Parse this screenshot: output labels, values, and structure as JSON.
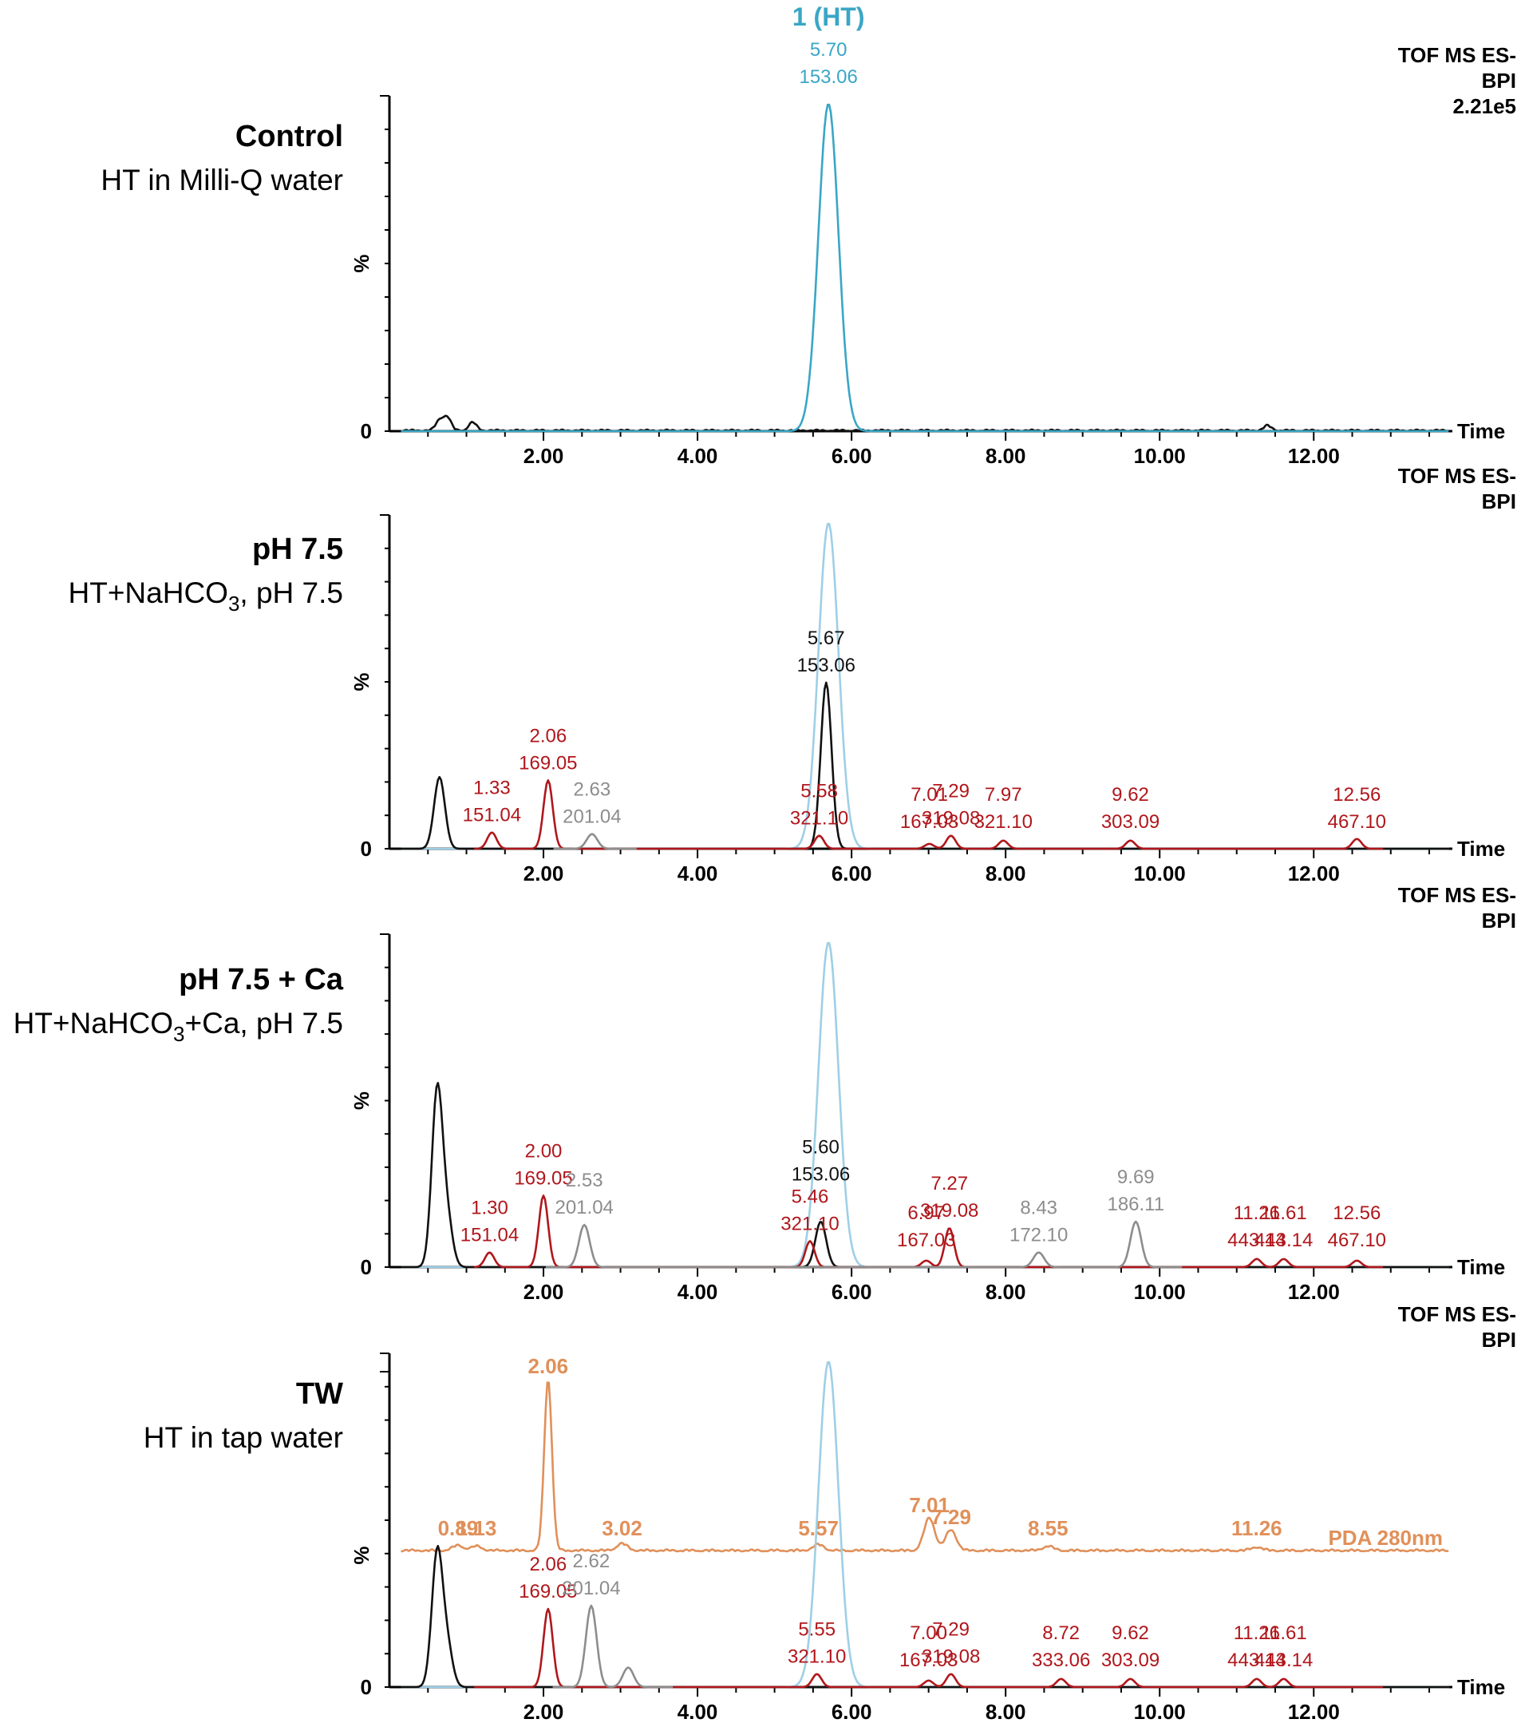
{
  "colors": {
    "black": "#111111",
    "ht_blue": "#3aa6c6",
    "ht_light_blue": "#9fcfe6",
    "red": "#b0171c",
    "gray": "#8d8d8d",
    "orange": "#e0905a"
  },
  "x_axis": {
    "label": "Time",
    "ticks": [
      "2.00",
      "4.00",
      "6.00",
      "8.00",
      "10.00",
      "12.00"
    ],
    "xlim": [
      0,
      13.8
    ]
  },
  "y_axis": {
    "label": "%",
    "zero_label": "0"
  },
  "chart_data": [
    {
      "type": "line",
      "title": "Control",
      "subtitle": "HT in Milli-Q water",
      "instrument": [
        "TOF MS ES-",
        "BPI",
        "2.21e5"
      ],
      "header_label": {
        "name": "1 (HT)",
        "rt": "5.70",
        "mz": "153.06"
      },
      "series": [
        {
          "role": "baseline",
          "color": "black",
          "bumps": [
            [
              0.65,
              3
            ],
            [
              0.75,
              4
            ],
            [
              1.08,
              2.5
            ],
            [
              11.4,
              1.5
            ]
          ]
        },
        {
          "role": "HT",
          "color": "ht_blue",
          "peaks": [
            [
              5.7,
              100
            ]
          ]
        }
      ],
      "labels": []
    },
    {
      "type": "line",
      "title": "pH 7.5",
      "subtitle": "HT+NaHCO",
      "subtitle_sub": "3",
      "subtitle_tail": ", pH 7.5",
      "instrument": [
        "TOF MS ES-",
        "BPI"
      ],
      "series": [
        {
          "role": "control-overlay",
          "color": "ht_light_blue",
          "peaks": [
            [
              5.7,
              100
            ]
          ]
        },
        {
          "role": "black",
          "color": "black",
          "peaks": [
            [
              0.65,
              22
            ],
            [
              5.67,
              51
            ]
          ]
        },
        {
          "role": "red",
          "color": "red",
          "peaks": [
            [
              1.33,
              5
            ],
            [
              2.06,
              21
            ],
            [
              5.58,
              4
            ],
            [
              7.01,
              1.5
            ],
            [
              7.29,
              4
            ],
            [
              7.97,
              2.5
            ],
            [
              9.62,
              2.5
            ],
            [
              12.56,
              3
            ]
          ]
        },
        {
          "role": "gray",
          "color": "gray",
          "peaks": [
            [
              2.63,
              4.5
            ]
          ]
        }
      ],
      "labels": [
        {
          "rt": "5.67",
          "mz": "153.06",
          "color": "black",
          "x": 5.67
        },
        {
          "rt": "1.33",
          "mz": "151.04",
          "color": "red",
          "x": 1.33
        },
        {
          "rt": "2.06",
          "mz": "169.05",
          "color": "red",
          "x": 2.06
        },
        {
          "rt": "2.63",
          "mz": "201.04",
          "color": "gray",
          "x": 2.63
        },
        {
          "rt": "5.58",
          "mz": "321.10",
          "color": "red",
          "x": 5.58
        },
        {
          "rt": "7.01",
          "mz": "167.03",
          "color": "red",
          "x": 7.01
        },
        {
          "rt": "7.29",
          "mz": "319.08",
          "color": "red",
          "x": 7.29
        },
        {
          "rt": "7.97",
          "mz": "321.10",
          "color": "red",
          "x": 7.97
        },
        {
          "rt": "9.62",
          "mz": "303.09",
          "color": "red",
          "x": 9.62
        },
        {
          "rt": "12.56",
          "mz": "467.10",
          "color": "red",
          "x": 12.56
        }
      ]
    },
    {
      "type": "line",
      "title": "pH 7.5 + Ca",
      "subtitle": "HT+NaHCO",
      "subtitle_sub": "3",
      "subtitle_tail": "+Ca, pH 7.5",
      "instrument": [
        "TOF MS ES-",
        "BPI"
      ],
      "series": [
        {
          "role": "control-overlay",
          "color": "ht_light_blue",
          "peaks": [
            [
              5.7,
              100
            ]
          ]
        },
        {
          "role": "black",
          "color": "black",
          "peaks": [
            [
              0.62,
              54
            ],
            [
              0.75,
              14
            ],
            [
              5.6,
              14
            ]
          ]
        },
        {
          "role": "red",
          "color": "red",
          "peaks": [
            [
              1.3,
              4.5
            ],
            [
              2.0,
              22
            ],
            [
              5.46,
              8
            ],
            [
              6.97,
              2
            ],
            [
              7.27,
              12
            ],
            [
              11.26,
              2.5
            ],
            [
              11.61,
              2.5
            ],
            [
              12.56,
              2
            ]
          ]
        },
        {
          "role": "gray",
          "color": "gray",
          "peaks": [
            [
              2.53,
              13
            ],
            [
              8.43,
              4.5
            ],
            [
              9.69,
              14
            ]
          ]
        }
      ],
      "labels": [
        {
          "rt": "2.00",
          "mz": "169.05",
          "color": "red",
          "x": 2.0
        },
        {
          "rt": "2.53",
          "mz": "201.04",
          "color": "gray",
          "x": 2.53
        },
        {
          "rt": "1.30",
          "mz": "151.04",
          "color": "red",
          "x": 1.3
        },
        {
          "rt": "5.46",
          "mz": "321.10",
          "color": "red",
          "x": 5.46
        },
        {
          "rt": "5.60",
          "mz": "153.06",
          "color": "black",
          "x": 5.6
        },
        {
          "rt": "6.97",
          "mz": "167.03",
          "color": "red",
          "x": 6.97
        },
        {
          "rt": "7.27",
          "mz": "319.08",
          "color": "red",
          "x": 7.27
        },
        {
          "rt": "8.43",
          "mz": "172.10",
          "color": "gray",
          "x": 8.43
        },
        {
          "rt": "9.69",
          "mz": "186.11",
          "color": "gray",
          "x": 9.69
        },
        {
          "rt": "11.26",
          "mz": "443.14",
          "color": "red",
          "x": 11.26
        },
        {
          "rt": "11.61",
          "mz": "443.14",
          "color": "red",
          "x": 11.61
        },
        {
          "rt": "12.56",
          "mz": "467.10",
          "color": "red",
          "x": 12.56
        }
      ]
    },
    {
      "type": "line",
      "title": "TW",
      "subtitle": "HT in tap water",
      "instrument": [
        "TOF MS ES-",
        "BPI"
      ],
      "pda": {
        "label": "PDA 280nm",
        "color": "orange",
        "peaks": [
          [
            0.89,
            3
          ],
          [
            1.13,
            2.5
          ],
          [
            2.06,
            100
          ],
          [
            3.02,
            4
          ],
          [
            5.57,
            3.5
          ],
          [
            7.01,
            19
          ],
          [
            7.29,
            12
          ],
          [
            8.55,
            2.5
          ],
          [
            11.26,
            2
          ]
        ],
        "labels": [
          "0.89",
          "1.13",
          "2.06",
          "3.02",
          "5.57",
          "7.01",
          "7.29",
          "8.55",
          "11.26"
        ]
      },
      "series": [
        {
          "role": "control-overlay",
          "color": "ht_light_blue",
          "peaks": [
            [
              5.7,
              100
            ]
          ]
        },
        {
          "role": "black",
          "color": "black",
          "peaks": [
            [
              0.62,
              41
            ],
            [
              0.75,
              12
            ]
          ]
        },
        {
          "role": "red",
          "color": "red",
          "peaks": [
            [
              2.06,
              24
            ],
            [
              5.55,
              4
            ],
            [
              7.0,
              2
            ],
            [
              7.29,
              4
            ],
            [
              8.72,
              2.5
            ],
            [
              9.62,
              2.5
            ],
            [
              11.26,
              2.5
            ],
            [
              11.61,
              2.5
            ]
          ]
        },
        {
          "role": "gray",
          "color": "gray",
          "peaks": [
            [
              2.62,
              25
            ],
            [
              3.1,
              6
            ]
          ]
        }
      ],
      "labels": [
        {
          "rt": "2.06",
          "mz": "169.05",
          "color": "red",
          "x": 2.06
        },
        {
          "rt": "2.62",
          "mz": "201.04",
          "color": "gray",
          "x": 2.62
        },
        {
          "rt": "5.55",
          "mz": "321.10",
          "color": "red",
          "x": 5.55
        },
        {
          "rt": "7.00",
          "mz": "167.03",
          "color": "red",
          "x": 7.0
        },
        {
          "rt": "7.29",
          "mz": "319.08",
          "color": "red",
          "x": 7.29
        },
        {
          "rt": "8.72",
          "mz": "333.06",
          "color": "red",
          "x": 8.72
        },
        {
          "rt": "9.62",
          "mz": "303.09",
          "color": "red",
          "x": 9.62
        },
        {
          "rt": "11.26",
          "mz": "443.14",
          "color": "red",
          "x": 11.26
        },
        {
          "rt": "11.61",
          "mz": "443.14",
          "color": "red",
          "x": 11.61
        }
      ]
    }
  ]
}
